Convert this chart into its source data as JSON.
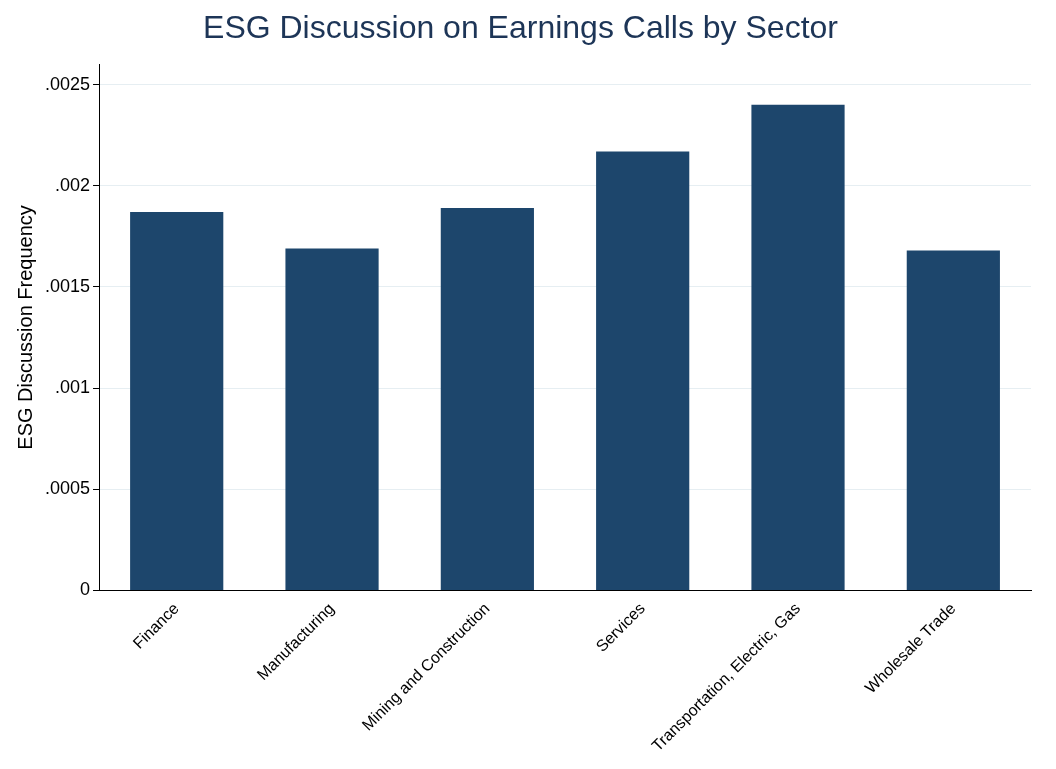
{
  "chart_data": {
    "type": "bar",
    "title": "ESG Discussion on Earnings Calls by Sector",
    "ylabel": "ESG Discussion Frequency",
    "categories": [
      "Finance",
      "Manufacturing",
      "Mining and Construction",
      "Services",
      "Transportation, Electric, Gas",
      "Wholesale Trade"
    ],
    "values": [
      0.00187,
      0.00169,
      0.00189,
      0.00217,
      0.0024,
      0.00168
    ],
    "color": "#1d466c",
    "ylim": [
      0,
      0.0026
    ],
    "yticks": [
      {
        "value": 0,
        "label": "0"
      },
      {
        "value": 0.0005,
        "label": ".0005"
      },
      {
        "value": 0.001,
        "label": ".001"
      },
      {
        "value": 0.0015,
        "label": ".0015"
      },
      {
        "value": 0.002,
        "label": ".002"
      },
      {
        "value": 0.0025,
        "label": ".0025"
      }
    ],
    "grid": "y",
    "legend": false
  }
}
